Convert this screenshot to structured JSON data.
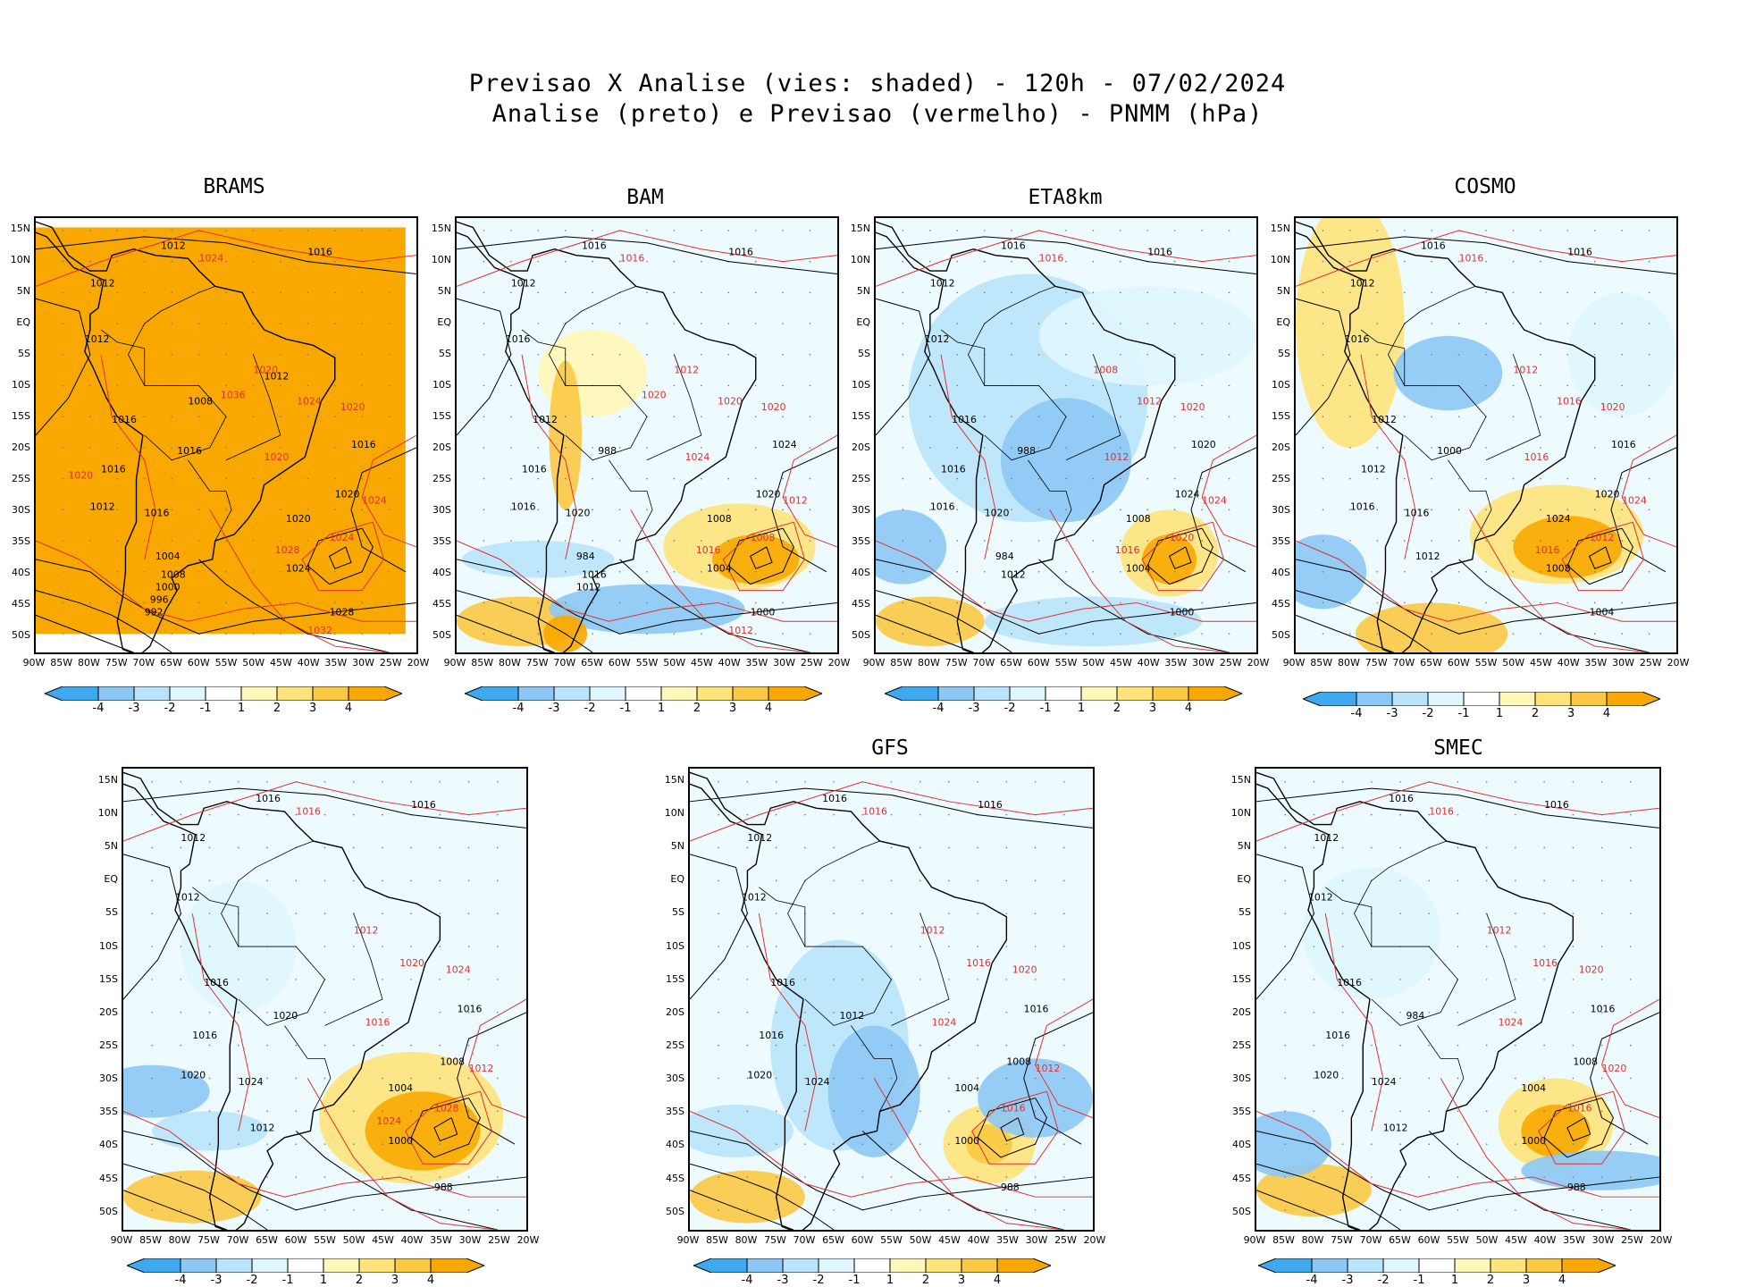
{
  "title": {
    "line1": "Previsao X Analise (vies: shaded) - 120h - 07/02/2024",
    "line2": "Analise (preto) e Previsao (vermelho) - PNMM (hPa)"
  },
  "axes": {
    "lat_labels": [
      "15N",
      "10N",
      "5N",
      "EQ",
      "5S",
      "10S",
      "15S",
      "20S",
      "25S",
      "30S",
      "35S",
      "40S",
      "45S",
      "50S"
    ],
    "lon_labels": [
      "90W",
      "85W",
      "80W",
      "75W",
      "70W",
      "65W",
      "60W",
      "55W",
      "50W",
      "45W",
      "40W",
      "35W",
      "30W",
      "25W",
      "20W"
    ]
  },
  "colorbar": {
    "labels": [
      "-4",
      "-3",
      "-2",
      "-1",
      "1",
      "2",
      "3",
      "4"
    ],
    "colors": [
      "#3fa9f0",
      "#8cc8f5",
      "#b9e4fb",
      "#dff6fe",
      "#ffffff",
      "#fff7b8",
      "#fde37a",
      "#fbc944",
      "#f8a800"
    ]
  },
  "panels": [
    {
      "name": "BRAMS",
      "analysis_isobars": [
        "1012",
        "1016",
        "1012",
        "1012",
        "1016",
        "1016",
        "1012",
        "1016",
        "1016",
        "1020",
        "1020",
        "1024",
        "1028",
        "1016",
        "1004",
        "1008",
        "1000",
        "996",
        "992",
        "1008",
        "1012"
      ],
      "forecast_isobars": [
        "1024",
        "1020",
        "1024",
        "1020",
        "1020",
        "1024",
        "1024",
        "1028",
        "1032",
        "1036",
        "1020"
      ]
    },
    {
      "name": "BAM",
      "analysis_isobars": [
        "1016",
        "1016",
        "1012",
        "1016",
        "1012",
        "1016",
        "1016",
        "1020",
        "1024",
        "1020",
        "1008",
        "1004",
        "1000",
        "988",
        "984",
        "1016",
        "1012"
      ],
      "forecast_isobars": [
        "1016",
        "1012",
        "1020",
        "1020",
        "1024",
        "1012",
        "1008",
        "1016",
        "1012",
        "1020"
      ]
    },
    {
      "name": "ETA8km",
      "analysis_isobars": [
        "1016",
        "1016",
        "1012",
        "1012",
        "1016",
        "1016",
        "1016",
        "1020",
        "1020",
        "1024",
        "1008",
        "1004",
        "1000",
        "988",
        "984",
        "1012"
      ],
      "forecast_isobars": [
        "1016",
        "1008",
        "1012",
        "1020",
        "1012",
        "1024",
        "1020",
        "1016"
      ]
    },
    {
      "name": "COSMO",
      "analysis_isobars": [
        "1016",
        "1016",
        "1012",
        "1016",
        "1012",
        "1012",
        "1016",
        "1016",
        "1016",
        "1020",
        "1024",
        "1008",
        "1004",
        "1000",
        "1012"
      ],
      "forecast_isobars": [
        "1016",
        "1012",
        "1016",
        "1020",
        "1016",
        "1024",
        "1012",
        "1016"
      ]
    },
    {
      "name": "",
      "analysis_isobars": [
        "1016",
        "1016",
        "1012",
        "1012",
        "1016",
        "1016",
        "1020",
        "1024",
        "1016",
        "1008",
        "1004",
        "1000",
        "988",
        "1020",
        "1012"
      ],
      "forecast_isobars": [
        "1016",
        "1012",
        "1020",
        "1024",
        "1016",
        "1012",
        "1028",
        "1024"
      ]
    },
    {
      "name": "GFS",
      "analysis_isobars": [
        "1016",
        "1016",
        "1012",
        "1012",
        "1016",
        "1016",
        "1020",
        "1024",
        "1016",
        "1008",
        "1004",
        "1000",
        "988",
        "1012"
      ],
      "forecast_isobars": [
        "1016",
        "1012",
        "1016",
        "1020",
        "1024",
        "1012",
        "1016"
      ]
    },
    {
      "name": "SMEC",
      "analysis_isobars": [
        "1016",
        "1016",
        "1012",
        "1012",
        "1016",
        "1016",
        "1020",
        "1024",
        "1016",
        "1008",
        "1004",
        "1000",
        "988",
        "984",
        "1012"
      ],
      "forecast_isobars": [
        "1016",
        "1012",
        "1016",
        "1020",
        "1024",
        "1020",
        "1016"
      ]
    }
  ]
}
